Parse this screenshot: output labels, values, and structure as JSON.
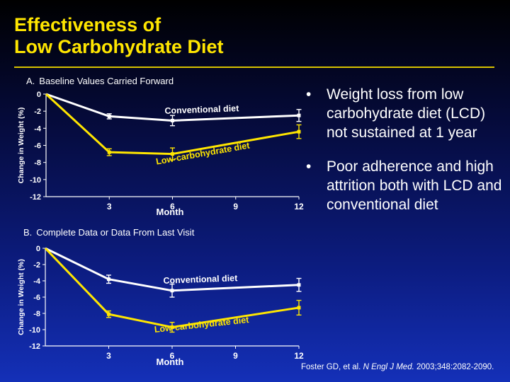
{
  "slide": {
    "title_line1": "Effectiveness of",
    "title_line2": "Low Carbohydrate Diet"
  },
  "colors": {
    "title": "#ffe600",
    "background_top": "#000000",
    "background_bottom": "#1430b8",
    "conventional_line": "#ffffff",
    "lowcarb_line": "#ffe600",
    "text": "#ffffff"
  },
  "bullets": [
    {
      "symbol": "•",
      "text": "Weight loss from low carbohydrate diet (LCD) not sustained at 1 year"
    },
    {
      "symbol": "•",
      "text": "Poor adherence and high attrition both with LCD and conventional diet"
    }
  ],
  "citation": {
    "authors": "Foster GD, et al. ",
    "journal": "N Engl J Med.",
    "details": " 2003;348:2082-2090."
  },
  "chart_data": [
    {
      "type": "line",
      "panel_letter": "A.",
      "title": "Baseline Values Carried Forward",
      "xlabel": "Month",
      "ylabel": "Change in Weight (%)",
      "x_ticks": [
        "3",
        "6",
        "9",
        "12"
      ],
      "y_ticks": [
        "0",
        "-2",
        "-4",
        "-6",
        "-8",
        "-10",
        "-12"
      ],
      "xlim": [
        0,
        12
      ],
      "ylim": [
        -12,
        0
      ],
      "grid": false,
      "series": [
        {
          "name": "Conventional diet",
          "color": "#ffffff",
          "x": [
            0,
            3,
            6,
            12
          ],
          "values": [
            0,
            -2.6,
            -3.1,
            -2.5
          ],
          "errors": [
            0,
            0.3,
            0.6,
            0.7
          ]
        },
        {
          "name": "Low-carbohydrate diet",
          "color": "#ffe600",
          "x": [
            0,
            3,
            6,
            12
          ],
          "values": [
            0,
            -6.8,
            -7.0,
            -4.4
          ],
          "errors": [
            0,
            0.4,
            0.7,
            0.8
          ]
        }
      ]
    },
    {
      "type": "line",
      "panel_letter": "B.",
      "title": "Complete Data or Data From Last Visit",
      "xlabel": "Month",
      "ylabel": "Change in Weight (%)",
      "x_ticks": [
        "3",
        "6",
        "9",
        "12"
      ],
      "y_ticks": [
        "0",
        "-2",
        "-4",
        "-6",
        "-8",
        "-10",
        "-12"
      ],
      "xlim": [
        0,
        12
      ],
      "ylim": [
        -12,
        0
      ],
      "grid": false,
      "series": [
        {
          "name": "Conventional diet",
          "color": "#ffffff",
          "x": [
            0,
            3,
            6,
            12
          ],
          "values": [
            0,
            -3.8,
            -5.2,
            -4.5
          ],
          "errors": [
            0,
            0.5,
            0.8,
            0.8
          ]
        },
        {
          "name": "Low-carbohydrate diet",
          "color": "#ffe600",
          "x": [
            0,
            3,
            6,
            12
          ],
          "values": [
            0,
            -8.1,
            -9.7,
            -7.3
          ],
          "errors": [
            0,
            0.4,
            0.6,
            0.9
          ]
        }
      ]
    }
  ]
}
